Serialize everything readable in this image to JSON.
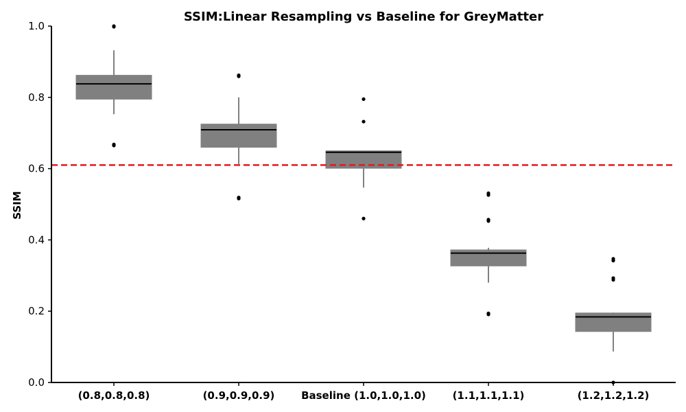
{
  "chart_data": {
    "type": "box",
    "title": "SSIM:Linear Resampling vs Baseline for GreyMatter",
    "xlabel": "",
    "ylabel": "SSIM",
    "ylim": [
      0.0,
      1.0
    ],
    "yticks": [
      "0.0",
      "0.2",
      "0.4",
      "0.6",
      "0.8",
      "1.0"
    ],
    "grid": false,
    "categories": [
      "(0.8,0.8,0.8)",
      "(0.9,0.9,0.9)",
      "Baseline (1.0,1.0,1.0)",
      "(1.1,1.1,1.1)",
      "(1.2,1.2,1.2)"
    ],
    "boxes": [
      {
        "whisker_low": 0.753,
        "q1": 0.795,
        "median": 0.838,
        "q3": 0.862,
        "whisker_high": 0.932,
        "outliers": [
          0.665,
          0.668,
          0.998,
          1.0
        ]
      },
      {
        "whisker_low": 0.613,
        "q1": 0.66,
        "median": 0.709,
        "q3": 0.725,
        "whisker_high": 0.8,
        "outliers": [
          0.516,
          0.519,
          0.859,
          0.862
        ]
      },
      {
        "whisker_low": 0.547,
        "q1": 0.601,
        "median": 0.646,
        "q3": 0.65,
        "whisker_high": 0.65,
        "outliers": [
          0.46,
          0.732,
          0.795
        ]
      },
      {
        "whisker_low": 0.28,
        "q1": 0.327,
        "median": 0.363,
        "q3": 0.372,
        "whisker_high": 0.378,
        "outliers": [
          0.191,
          0.194,
          0.453,
          0.457,
          0.526,
          0.531
        ]
      },
      {
        "whisker_low": 0.087,
        "q1": 0.143,
        "median": 0.184,
        "q3": 0.195,
        "whisker_high": 0.196,
        "outliers": [
          0.0,
          0.288,
          0.293,
          0.342,
          0.347
        ]
      }
    ],
    "reference_line": {
      "value": 0.61,
      "color": "#e31a1c",
      "style": "dashed"
    },
    "box_color": "#808080",
    "median_color": "#000000"
  }
}
